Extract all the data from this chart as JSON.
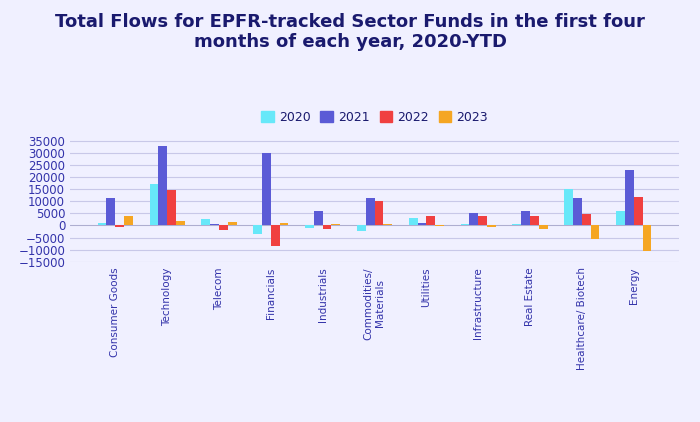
{
  "title": "Total Flows for EPFR-tracked Sector Funds in the first four\nmonths of each year, 2020-YTD",
  "categories": [
    "Consumer Goods",
    "Technology",
    "Telecom",
    "Financials",
    "Industrials",
    "Commodities/\nMaterials",
    "Utilities",
    "Infrastructure",
    "Real Estate",
    "Healthcare/ Biotech",
    "Energy"
  ],
  "years": [
    "2020",
    "2021",
    "2022",
    "2023"
  ],
  "colors": [
    "#67e8f9",
    "#5b5bd6",
    "#f04040",
    "#f5a623"
  ],
  "data": {
    "2020": [
      1000,
      17000,
      2500,
      -3500,
      -1000,
      -2500,
      3000,
      500,
      500,
      15000,
      6000
    ],
    "2021": [
      11500,
      33000,
      500,
      30000,
      6000,
      11500,
      1200,
      5000,
      6000,
      11500,
      23000
    ],
    "2022": [
      -500,
      14800,
      -2000,
      -8500,
      -1500,
      10000,
      4000,
      4000,
      4000,
      4800,
      12000
    ],
    "2023": [
      4000,
      2000,
      1300,
      1000,
      800,
      500,
      -300,
      -500,
      -1500,
      -5500,
      -10500
    ]
  },
  "ylim": [
    -15000,
    37500
  ],
  "yticks": [
    -15000,
    -10000,
    -5000,
    0,
    5000,
    10000,
    15000,
    20000,
    25000,
    30000,
    35000
  ],
  "background_color": "#f0f0ff",
  "grid_color": "#c8c8e8",
  "title_color": "#1a1a6e",
  "tick_color": "#3333aa",
  "legend_fontsize": 9,
  "title_fontsize": 13,
  "bar_width": 0.17
}
